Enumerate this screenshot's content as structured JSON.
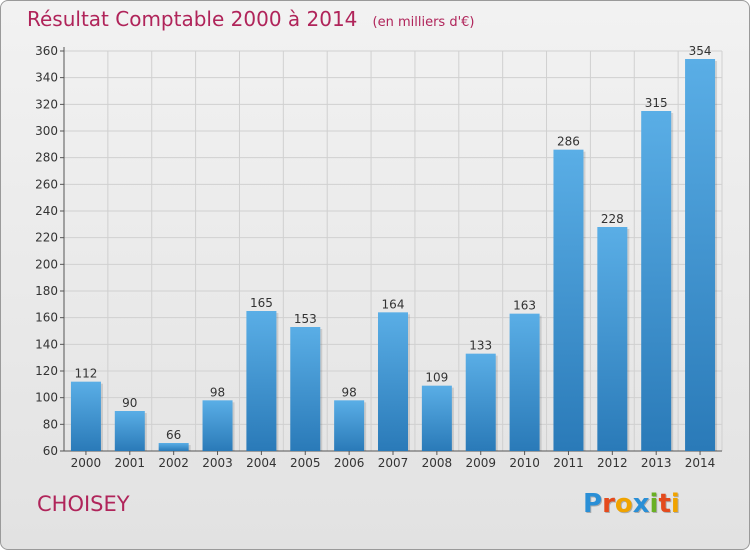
{
  "title": "Résultat Comptable 2000 à 2014",
  "subtitle": "(en milliers d'€)",
  "commune": "CHOISEY",
  "logo": {
    "text": "Proxiti",
    "letters": [
      {
        "char": "P",
        "color": "#2a8fd6"
      },
      {
        "char": "r",
        "color": "#e44a1c"
      },
      {
        "char": "o",
        "color": "#f0a300"
      },
      {
        "char": "x",
        "color": "#2a8fd6"
      },
      {
        "char": "i",
        "color": "#6ab024"
      },
      {
        "char": "t",
        "color": "#e44a1c"
      },
      {
        "char": "i",
        "color": "#f0a300"
      }
    ]
  },
  "chart_data": {
    "type": "bar",
    "categories": [
      "2000",
      "2001",
      "2002",
      "2003",
      "2004",
      "2005",
      "2006",
      "2007",
      "2008",
      "2009",
      "2010",
      "2011",
      "2012",
      "2013",
      "2014"
    ],
    "values": [
      112,
      90,
      66,
      98,
      165,
      153,
      98,
      164,
      109,
      133,
      163,
      286,
      228,
      315,
      354
    ],
    "ylim": [
      60,
      360
    ],
    "yticks": [
      60,
      80,
      100,
      120,
      140,
      160,
      180,
      200,
      220,
      240,
      260,
      280,
      300,
      320,
      340,
      360
    ],
    "grid": true,
    "bar_color_top": "#5aaee6",
    "bar_color_bottom": "#2a7ab8"
  }
}
